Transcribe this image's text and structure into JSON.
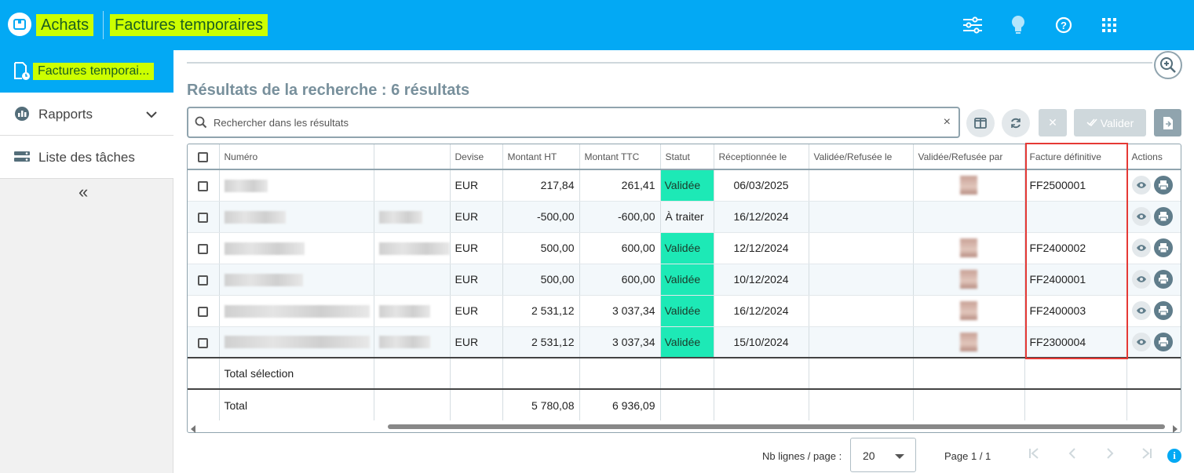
{
  "header": {
    "breadcrumb": [
      "Achats",
      "Factures temporaires"
    ],
    "icons": [
      "sliders-icon",
      "lightbulb-icon",
      "help-icon",
      "apps-grid-icon",
      "user-avatar"
    ]
  },
  "sidebar": {
    "items": [
      {
        "label": "Factures temporai...",
        "icon": "invoice-clock-icon",
        "active": true
      },
      {
        "label": "Rapports",
        "icon": "chart-icon",
        "expandable": true
      },
      {
        "label": "Liste des tâches",
        "icon": "tasks-icon"
      }
    ],
    "collapse_label": "«"
  },
  "main": {
    "results_title": "Résultats de la recherche : 6 résultats",
    "search": {
      "placeholder": "Rechercher dans les résultats",
      "clear": "×"
    },
    "toolbar": {
      "cancel_label": "✕",
      "validate_label": "Valider"
    },
    "columns": [
      "",
      "Numéro",
      "",
      "Devise",
      "Montant HT",
      "Montant TTC",
      "Statut",
      "Réceptionnée le",
      "Validée/Refusée le",
      "Validée/Refusée par",
      "Facture définitive",
      "Actions"
    ],
    "rows": [
      {
        "devise": "EUR",
        "ht": "217,84",
        "ttc": "261,41",
        "statut": "Validée",
        "recue": "06/03/2025",
        "definitive": "FF2500001"
      },
      {
        "devise": "EUR",
        "ht": "-500,00",
        "ttc": "-600,00",
        "statut": "À traiter",
        "recue": "16/12/2024",
        "definitive": ""
      },
      {
        "devise": "EUR",
        "ht": "500,00",
        "ttc": "600,00",
        "statut": "Validée",
        "recue": "12/12/2024",
        "definitive": "FF2400002"
      },
      {
        "devise": "EUR",
        "ht": "500,00",
        "ttc": "600,00",
        "statut": "Validée",
        "recue": "10/12/2024",
        "definitive": "FF2400001"
      },
      {
        "devise": "EUR",
        "ht": "2 531,12",
        "ttc": "3 037,34",
        "statut": "Validée",
        "recue": "16/12/2024",
        "definitive": "FF2400003"
      },
      {
        "devise": "EUR",
        "ht": "2 531,12",
        "ttc": "3 037,34",
        "statut": "Validée",
        "recue": "15/10/2024",
        "definitive": "FF2300004"
      }
    ],
    "totals": {
      "selection_label": "Total sélection",
      "total_label": "Total",
      "total_ht": "5 780,08",
      "total_ttc": "6 936,09"
    }
  },
  "pagination": {
    "rows_per_page_label": "Nb lignes / page :",
    "rows_per_page": "20",
    "page_info": "Page 1 / 1"
  },
  "colors": {
    "primary": "#03a9f4",
    "highlight": "#ccff00",
    "validated": "#1de9b6",
    "annotation_box": "#e53935"
  }
}
